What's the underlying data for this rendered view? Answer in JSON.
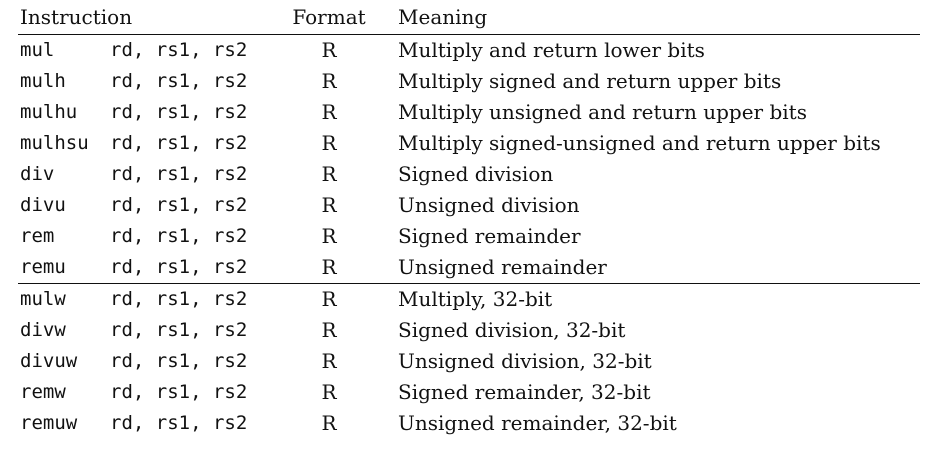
{
  "header": {
    "instruction": "Instruction",
    "format": "Format",
    "meaning": "Meaning"
  },
  "groups": [
    {
      "rows": [
        {
          "mnemonic": "mul",
          "operands": "rd, rs1, rs2",
          "format": "R",
          "meaning": "Multiply and return lower bits"
        },
        {
          "mnemonic": "mulh",
          "operands": "rd, rs1, rs2",
          "format": "R",
          "meaning": "Multiply signed and return upper bits"
        },
        {
          "mnemonic": "mulhu",
          "operands": "rd, rs1, rs2",
          "format": "R",
          "meaning": "Multiply unsigned and return upper bits"
        },
        {
          "mnemonic": "mulhsu",
          "operands": "rd, rs1, rs2",
          "format": "R",
          "meaning": "Multiply signed-unsigned and return upper bits"
        },
        {
          "mnemonic": "div",
          "operands": "rd, rs1, rs2",
          "format": "R",
          "meaning": "Signed division"
        },
        {
          "mnemonic": "divu",
          "operands": "rd, rs1, rs2",
          "format": "R",
          "meaning": "Unsigned division"
        },
        {
          "mnemonic": "rem",
          "operands": "rd, rs1, rs2",
          "format": "R",
          "meaning": "Signed remainder"
        },
        {
          "mnemonic": "remu",
          "operands": "rd, rs1, rs2",
          "format": "R",
          "meaning": "Unsigned remainder"
        }
      ]
    },
    {
      "rows": [
        {
          "mnemonic": "mulw",
          "operands": "rd, rs1, rs2",
          "format": "R",
          "meaning": "Multiply, 32-bit"
        },
        {
          "mnemonic": "divw",
          "operands": "rd, rs1, rs2",
          "format": "R",
          "meaning": "Signed division, 32-bit"
        },
        {
          "mnemonic": "divuw",
          "operands": "rd, rs1, rs2",
          "format": "R",
          "meaning": "Unsigned division, 32-bit"
        },
        {
          "mnemonic": "remw",
          "operands": "rd, rs1, rs2",
          "format": "R",
          "meaning": "Signed remainder, 32-bit"
        },
        {
          "mnemonic": "remuw",
          "operands": "rd, rs1, rs2",
          "format": "R",
          "meaning": "Unsigned remainder, 32-bit"
        }
      ]
    }
  ]
}
